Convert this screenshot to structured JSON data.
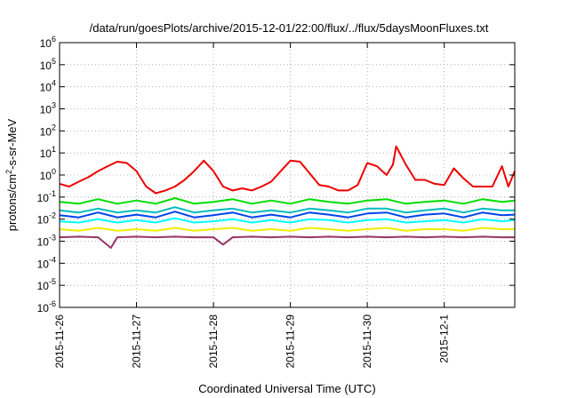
{
  "chart_data": {
    "type": "line",
    "title": "/data/run/goesPlots/archive/2015-12-01/22:00/flux/../flux/5daysMoonFluxes.txt",
    "xlabel": "Coordinated Universal Time (UTC)",
    "ylabel": {
      "prefix": "protons/cm",
      "sup": "2",
      "suffix": "-s-sr-MeV"
    },
    "y_scale": "log",
    "ylim": [
      1e-06,
      1000000.0
    ],
    "xlim": [
      "2015-11-26",
      "2015-12-01T22:00"
    ],
    "grid": true,
    "y_ticks": [
      {
        "value": 1e-06,
        "base": "10",
        "exp": "-6"
      },
      {
        "value": 1e-05,
        "base": "10",
        "exp": "-5"
      },
      {
        "value": 0.0001,
        "base": "10",
        "exp": "-4"
      },
      {
        "value": 0.001,
        "base": "10",
        "exp": "-3"
      },
      {
        "value": 0.01,
        "base": "10",
        "exp": "-2"
      },
      {
        "value": 0.1,
        "base": "10",
        "exp": "-1"
      },
      {
        "value": 1.0,
        "base": "10",
        "exp": "0"
      },
      {
        "value": 10.0,
        "base": "10",
        "exp": "1"
      },
      {
        "value": 100.0,
        "base": "10",
        "exp": "2"
      },
      {
        "value": 1000.0,
        "base": "10",
        "exp": "3"
      },
      {
        "value": 10000.0,
        "base": "10",
        "exp": "4"
      },
      {
        "value": 100000.0,
        "base": "10",
        "exp": "5"
      },
      {
        "value": 1000000.0,
        "base": "10",
        "exp": "6"
      }
    ],
    "x_ticks": [
      {
        "date": "2015-11-26",
        "label": "2015-11-26"
      },
      {
        "date": "2015-11-27",
        "label": "2015-11-27"
      },
      {
        "date": "2015-11-28",
        "label": "2015-11-28"
      },
      {
        "date": "2015-11-29",
        "label": "2015-11-29"
      },
      {
        "date": "2015-11-30",
        "label": "2015-11-30"
      },
      {
        "date": "2015-12-01",
        "label": "2015-12-1"
      }
    ],
    "series": [
      {
        "color": "#ee0000",
        "x": [
          "2015-11-26T00:00",
          "2015-11-26T03:00",
          "2015-11-26T06:00",
          "2015-11-26T09:00",
          "2015-11-26T12:00",
          "2015-11-26T15:00",
          "2015-11-26T18:00",
          "2015-11-26T21:00",
          "2015-11-27T00:00",
          "2015-11-27T03:00",
          "2015-11-27T06:00",
          "2015-11-27T09:00",
          "2015-11-27T12:00",
          "2015-11-27T15:00",
          "2015-11-27T18:00",
          "2015-11-27T21:00",
          "2015-11-28T00:00",
          "2015-11-28T03:00",
          "2015-11-28T06:00",
          "2015-11-28T09:00",
          "2015-11-28T12:00",
          "2015-11-28T15:00",
          "2015-11-28T18:00",
          "2015-11-28T21:00",
          "2015-11-29T00:00",
          "2015-11-29T03:00",
          "2015-11-29T06:00",
          "2015-11-29T09:00",
          "2015-11-29T12:00",
          "2015-11-29T15:00",
          "2015-11-29T18:00",
          "2015-11-29T21:00",
          "2015-11-30T00:00",
          "2015-11-30T03:00",
          "2015-11-30T06:00",
          "2015-11-30T08:00",
          "2015-11-30T09:00",
          "2015-11-30T12:00",
          "2015-11-30T15:00",
          "2015-11-30T18:00",
          "2015-11-30T21:00",
          "2015-12-01T00:00",
          "2015-12-01T03:00",
          "2015-12-01T06:00",
          "2015-12-01T09:00",
          "2015-12-01T12:00",
          "2015-12-01T15:00",
          "2015-12-01T18:00",
          "2015-12-01T20:00",
          "2015-12-01T22:00"
        ],
        "values": [
          0.4,
          0.3,
          0.5,
          0.8,
          1.5,
          2.5,
          4.0,
          3.5,
          1.5,
          0.3,
          0.15,
          0.2,
          0.3,
          0.6,
          1.5,
          4.5,
          1.5,
          0.3,
          0.2,
          0.25,
          0.2,
          0.3,
          0.5,
          1.5,
          4.5,
          4.0,
          1.2,
          0.35,
          0.3,
          0.2,
          0.2,
          0.35,
          3.5,
          2.5,
          1.0,
          3.0,
          20.0,
          3.0,
          0.6,
          0.6,
          0.4,
          0.35,
          2.0,
          0.7,
          0.3,
          0.3,
          0.3,
          2.5,
          0.3,
          1.5
        ]
      },
      {
        "color": "#00dd00",
        "x": [
          "2015-11-26T00:00",
          "2015-11-26T06:00",
          "2015-11-26T12:00",
          "2015-11-26T18:00",
          "2015-11-27T00:00",
          "2015-11-27T06:00",
          "2015-11-27T12:00",
          "2015-11-27T18:00",
          "2015-11-28T00:00",
          "2015-11-28T06:00",
          "2015-11-28T12:00",
          "2015-11-28T18:00",
          "2015-11-29T00:00",
          "2015-11-29T06:00",
          "2015-11-29T12:00",
          "2015-11-29T18:00",
          "2015-11-30T00:00",
          "2015-11-30T06:00",
          "2015-11-30T12:00",
          "2015-11-30T18:00",
          "2015-12-01T00:00",
          "2015-12-01T06:00",
          "2015-12-01T12:00",
          "2015-12-01T18:00",
          "2015-12-01T22:00"
        ],
        "values": [
          0.06,
          0.05,
          0.08,
          0.05,
          0.07,
          0.05,
          0.09,
          0.05,
          0.06,
          0.08,
          0.05,
          0.07,
          0.05,
          0.08,
          0.06,
          0.05,
          0.07,
          0.08,
          0.05,
          0.06,
          0.07,
          0.05,
          0.08,
          0.06,
          0.07
        ]
      },
      {
        "color": "#00bbbb",
        "x": [
          "2015-11-26T00:00",
          "2015-11-26T06:00",
          "2015-11-26T12:00",
          "2015-11-26T18:00",
          "2015-11-27T00:00",
          "2015-11-27T06:00",
          "2015-11-27T12:00",
          "2015-11-27T18:00",
          "2015-11-28T00:00",
          "2015-11-28T06:00",
          "2015-11-28T12:00",
          "2015-11-28T18:00",
          "2015-11-29T00:00",
          "2015-11-29T06:00",
          "2015-11-29T12:00",
          "2015-11-29T18:00",
          "2015-11-30T00:00",
          "2015-11-30T06:00",
          "2015-11-30T12:00",
          "2015-11-30T18:00",
          "2015-12-01T00:00",
          "2015-12-01T06:00",
          "2015-12-01T12:00",
          "2015-12-01T18:00",
          "2015-12-01T22:00"
        ],
        "values": [
          0.025,
          0.02,
          0.03,
          0.02,
          0.025,
          0.02,
          0.035,
          0.02,
          0.025,
          0.03,
          0.02,
          0.025,
          0.02,
          0.03,
          0.025,
          0.02,
          0.03,
          0.03,
          0.02,
          0.025,
          0.03,
          0.02,
          0.03,
          0.025,
          0.025
        ]
      },
      {
        "color": "#0044ee",
        "x": [
          "2015-11-26T00:00",
          "2015-11-26T06:00",
          "2015-11-26T12:00",
          "2015-11-26T18:00",
          "2015-11-27T00:00",
          "2015-11-27T06:00",
          "2015-11-27T12:00",
          "2015-11-27T18:00",
          "2015-11-28T00:00",
          "2015-11-28T06:00",
          "2015-11-28T12:00",
          "2015-11-28T18:00",
          "2015-11-29T00:00",
          "2015-11-29T06:00",
          "2015-11-29T12:00",
          "2015-11-29T18:00",
          "2015-11-30T00:00",
          "2015-11-30T06:00",
          "2015-11-30T12:00",
          "2015-11-30T18:00",
          "2015-12-01T00:00",
          "2015-12-01T06:00",
          "2015-12-01T12:00",
          "2015-12-01T18:00",
          "2015-12-01T22:00"
        ],
        "values": [
          0.015,
          0.012,
          0.02,
          0.012,
          0.016,
          0.012,
          0.022,
          0.012,
          0.015,
          0.02,
          0.012,
          0.016,
          0.012,
          0.02,
          0.016,
          0.012,
          0.018,
          0.02,
          0.012,
          0.016,
          0.018,
          0.012,
          0.02,
          0.015,
          0.016
        ]
      },
      {
        "color": "#00ffff",
        "x": [
          "2015-11-26T00:00",
          "2015-11-26T06:00",
          "2015-11-26T12:00",
          "2015-11-26T18:00",
          "2015-11-27T00:00",
          "2015-11-27T06:00",
          "2015-11-27T12:00",
          "2015-11-27T18:00",
          "2015-11-28T00:00",
          "2015-11-28T06:00",
          "2015-11-28T12:00",
          "2015-11-28T18:00",
          "2015-11-29T00:00",
          "2015-11-29T06:00",
          "2015-11-29T12:00",
          "2015-11-29T18:00",
          "2015-11-30T00:00",
          "2015-11-30T06:00",
          "2015-11-30T12:00",
          "2015-11-30T18:00",
          "2015-12-01T00:00",
          "2015-12-01T06:00",
          "2015-12-01T12:00",
          "2015-12-01T18:00",
          "2015-12-01T22:00"
        ],
        "values": [
          0.008,
          0.007,
          0.01,
          0.007,
          0.009,
          0.007,
          0.011,
          0.007,
          0.008,
          0.01,
          0.007,
          0.009,
          0.007,
          0.01,
          0.009,
          0.007,
          0.009,
          0.01,
          0.007,
          0.008,
          0.009,
          0.007,
          0.01,
          0.008,
          0.009
        ]
      },
      {
        "color": "#eeee00",
        "x": [
          "2015-11-26T00:00",
          "2015-11-26T06:00",
          "2015-11-26T12:00",
          "2015-11-26T18:00",
          "2015-11-27T00:00",
          "2015-11-27T06:00",
          "2015-11-27T12:00",
          "2015-11-27T18:00",
          "2015-11-28T00:00",
          "2015-11-28T06:00",
          "2015-11-28T12:00",
          "2015-11-28T18:00",
          "2015-11-29T00:00",
          "2015-11-29T06:00",
          "2015-11-29T12:00",
          "2015-11-29T18:00",
          "2015-11-30T00:00",
          "2015-11-30T06:00",
          "2015-11-30T12:00",
          "2015-11-30T18:00",
          "2015-12-01T00:00",
          "2015-12-01T06:00",
          "2015-12-01T12:00",
          "2015-12-01T18:00",
          "2015-12-01T22:00"
        ],
        "values": [
          0.0035,
          0.003,
          0.004,
          0.003,
          0.0035,
          0.003,
          0.004,
          0.003,
          0.0035,
          0.004,
          0.003,
          0.0035,
          0.003,
          0.004,
          0.0035,
          0.003,
          0.0035,
          0.004,
          0.003,
          0.0035,
          0.0035,
          0.003,
          0.004,
          0.0035,
          0.0035
        ]
      },
      {
        "color": "#993366",
        "x": [
          "2015-11-26T00:00",
          "2015-11-26T06:00",
          "2015-11-26T12:00",
          "2015-11-26T16:00",
          "2015-11-26T18:00",
          "2015-11-27T00:00",
          "2015-11-27T06:00",
          "2015-11-27T12:00",
          "2015-11-27T18:00",
          "2015-11-28T00:00",
          "2015-11-28T03:00",
          "2015-11-28T06:00",
          "2015-11-28T12:00",
          "2015-11-28T18:00",
          "2015-11-29T00:00",
          "2015-11-29T06:00",
          "2015-11-29T12:00",
          "2015-11-29T18:00",
          "2015-11-30T00:00",
          "2015-11-30T06:00",
          "2015-11-30T12:00",
          "2015-11-30T18:00",
          "2015-12-01T00:00",
          "2015-12-01T06:00",
          "2015-12-01T12:00",
          "2015-12-01T18:00",
          "2015-12-01T22:00"
        ],
        "values": [
          0.0015,
          0.0016,
          0.0015,
          0.0005,
          0.0015,
          0.0016,
          0.0015,
          0.0016,
          0.0015,
          0.0015,
          0.0007,
          0.0015,
          0.0016,
          0.0015,
          0.0016,
          0.0015,
          0.0016,
          0.0015,
          0.0016,
          0.0015,
          0.0016,
          0.0015,
          0.0016,
          0.0015,
          0.0016,
          0.0015,
          0.0015
        ]
      }
    ]
  }
}
